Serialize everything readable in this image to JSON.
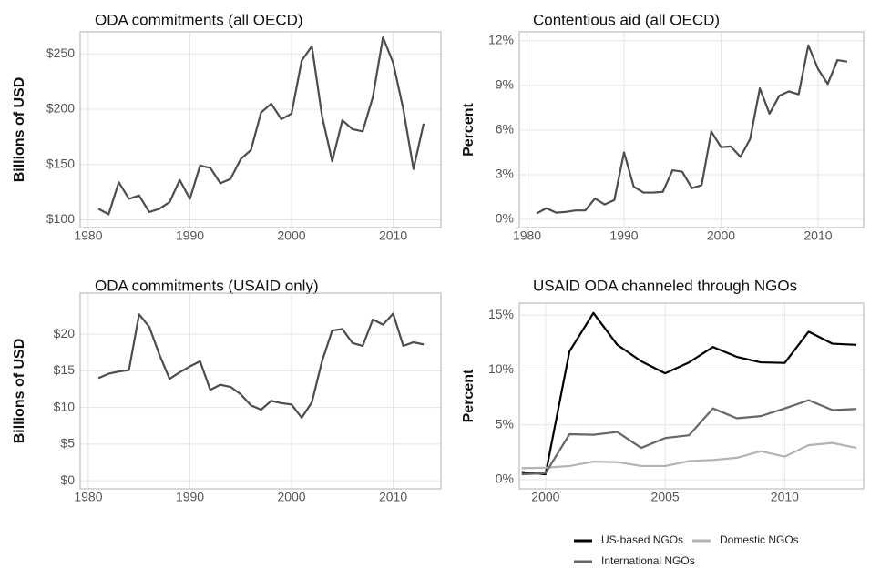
{
  "chart_data": [
    {
      "type": "line",
      "title": "ODA commitments (all OECD)",
      "y_label": "Billions of USD",
      "color": "#4d4d4d",
      "grid": true,
      "x": [
        1981,
        1982,
        1983,
        1984,
        1985,
        1986,
        1987,
        1988,
        1989,
        1990,
        1991,
        1992,
        1993,
        1994,
        1995,
        1996,
        1997,
        1998,
        1999,
        2000,
        2001,
        2002,
        2003,
        2004,
        2005,
        2006,
        2007,
        2008,
        2009,
        2010,
        2011,
        2012,
        2013
      ],
      "values": [
        110,
        105,
        134,
        119,
        122,
        107,
        110,
        116,
        136,
        119,
        149,
        147,
        133,
        137,
        155,
        163,
        197,
        205,
        191,
        196,
        244,
        257,
        194,
        153,
        190,
        182,
        180,
        211,
        265,
        242,
        200,
        146,
        187
      ],
      "xlim": [
        1979.2,
        2014.7
      ],
      "xticks": [
        1980,
        1990,
        2000,
        2010
      ],
      "ylim": [
        93,
        270
      ],
      "yticks": [
        {
          "value": 100,
          "label": "$100"
        },
        {
          "value": 150,
          "label": "$150"
        },
        {
          "value": 200,
          "label": "$200"
        },
        {
          "value": 250,
          "label": "$250"
        }
      ]
    },
    {
      "type": "line",
      "title": "Contentious aid (all OECD)",
      "y_label": "Percent",
      "color": "#4d4d4d",
      "grid": true,
      "x": [
        1981,
        1982,
        1983,
        1984,
        1985,
        1986,
        1987,
        1988,
        1989,
        1990,
        1991,
        1992,
        1993,
        1994,
        1995,
        1996,
        1997,
        1998,
        1999,
        2000,
        2001,
        2002,
        2003,
        2004,
        2005,
        2006,
        2007,
        2008,
        2009,
        2010,
        2011,
        2012,
        2013
      ],
      "values": [
        0.4,
        0.75,
        0.45,
        0.5,
        0.6,
        0.6,
        1.4,
        1.0,
        1.3,
        4.5,
        2.2,
        1.8,
        1.8,
        1.85,
        3.3,
        3.2,
        2.1,
        2.3,
        5.9,
        4.85,
        4.9,
        4.2,
        5.4,
        8.8,
        7.1,
        8.3,
        8.6,
        8.4,
        11.7,
        10.1,
        9.1,
        10.7,
        10.6
      ],
      "xlim": [
        1979.2,
        2014.7
      ],
      "xticks": [
        1980,
        1990,
        2000,
        2010
      ],
      "ylim": [
        -0.55,
        12.6
      ],
      "yticks": [
        {
          "value": 0,
          "label": "0%"
        },
        {
          "value": 3,
          "label": "3%"
        },
        {
          "value": 6,
          "label": "6%"
        },
        {
          "value": 9,
          "label": "9%"
        },
        {
          "value": 12,
          "label": "12%"
        }
      ]
    },
    {
      "type": "line",
      "title": "ODA commitments (USAID only)",
      "y_label": "Billions of USD",
      "color": "#4d4d4d",
      "grid": true,
      "x": [
        1981,
        1982,
        1983,
        1984,
        1985,
        1986,
        1987,
        1988,
        1989,
        1990,
        1991,
        1992,
        1993,
        1994,
        1995,
        1996,
        1997,
        1998,
        1999,
        2000,
        2001,
        2002,
        2003,
        2004,
        2005,
        2006,
        2007,
        2008,
        2009,
        2010,
        2011,
        2012,
        2013
      ],
      "values": [
        14.0,
        14.6,
        14.9,
        15.1,
        22.7,
        21.0,
        17.2,
        13.9,
        14.8,
        15.6,
        16.3,
        12.4,
        13.1,
        12.8,
        11.8,
        10.3,
        9.7,
        10.9,
        10.6,
        10.4,
        8.6,
        10.7,
        16.3,
        20.5,
        20.7,
        18.8,
        18.4,
        22.0,
        21.3,
        22.8,
        18.4,
        18.9,
        18.6
      ],
      "xlim": [
        1979.2,
        2014.7
      ],
      "xticks": [
        1980,
        1990,
        2000,
        2010
      ],
      "ylim": [
        -1.1,
        25.6
      ],
      "yticks": [
        {
          "value": 0,
          "label": "$0"
        },
        {
          "value": 5,
          "label": "$5"
        },
        {
          "value": 10,
          "label": "$10"
        },
        {
          "value": 15,
          "label": "$15"
        },
        {
          "value": 20,
          "label": "$20"
        }
      ]
    },
    {
      "type": "line",
      "title": "USAID ODA channeled through NGOs",
      "y_label": "Percent",
      "grid": true,
      "legend": "bottom",
      "x": [
        1999,
        2000,
        2001,
        2002,
        2003,
        2004,
        2005,
        2006,
        2007,
        2008,
        2009,
        2010,
        2011,
        2012,
        2013
      ],
      "series": [
        {
          "name": "US-based NGOs",
          "color": "#000000",
          "values": [
            0.7,
            0.5,
            11.7,
            15.2,
            12.3,
            10.8,
            9.7,
            10.7,
            12.1,
            11.2,
            10.7,
            10.65,
            13.5,
            12.4,
            12.3
          ]
        },
        {
          "name": "Domestic NGOs",
          "color": "#b3b3b3",
          "values": [
            1.05,
            1.1,
            1.25,
            1.65,
            1.6,
            1.25,
            1.25,
            1.7,
            1.8,
            2.0,
            2.6,
            2.1,
            3.15,
            3.35,
            2.9
          ]
        },
        {
          "name": "International NGOs",
          "color": "#666666",
          "values": [
            0.5,
            0.6,
            4.15,
            4.1,
            4.35,
            2.9,
            3.8,
            4.05,
            6.5,
            5.6,
            5.8,
            6.5,
            7.25,
            6.35,
            6.45
          ]
        }
      ],
      "xlim": [
        1998.9,
        2013.3
      ],
      "xticks": [
        2000,
        2005,
        2010
      ],
      "ylim": [
        -0.83,
        16.1
      ],
      "yticks": [
        {
          "value": 0,
          "label": "0%"
        },
        {
          "value": 5,
          "label": "5%"
        },
        {
          "value": 10,
          "label": "10%"
        },
        {
          "value": 15,
          "label": "15%"
        }
      ]
    }
  ]
}
